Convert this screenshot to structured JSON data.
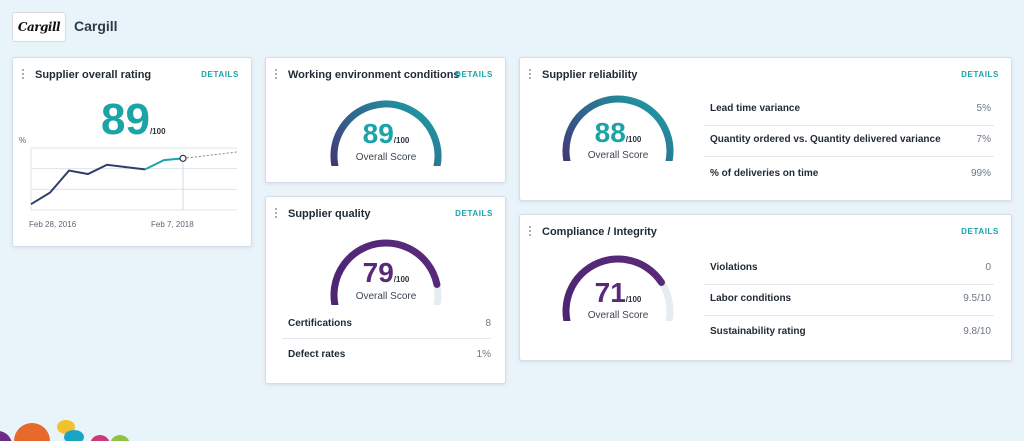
{
  "header": {
    "company": "Cargill",
    "logo_text": "Cargill"
  },
  "colors": {
    "teal": "#1aa4a8",
    "purple": "#5a2a7a",
    "track": "#e6edf2"
  },
  "overall": {
    "title": "Supplier overall rating",
    "details": "DETAILS",
    "score": "89",
    "of": "/100",
    "y_unit": "%",
    "x_start": "Feb 28, 2016",
    "x_end": "Feb 7, 2018"
  },
  "chart_data": {
    "type": "line",
    "x": [
      "Feb 28, 2016",
      "",
      "",
      "",
      "",
      "",
      "",
      "",
      "Feb 7, 2018"
    ],
    "series": [
      {
        "values": [
          10,
          30,
          68,
          62,
          78,
          74,
          70,
          86,
          89
        ]
      }
    ],
    "projection": [
      89,
      100
    ],
    "grid": true
  },
  "working": {
    "title": "Working environment conditions",
    "details": "DETAILS",
    "score": "89",
    "of": "/100",
    "label": "Overall Score",
    "value": 89,
    "color": "teal"
  },
  "quality": {
    "title": "Supplier quality",
    "details": "DETAILS",
    "score": "79",
    "of": "/100",
    "label": "Overall Score",
    "value": 79,
    "color": "purple",
    "rows": [
      {
        "label": "Certifications",
        "value": "8"
      },
      {
        "label": "Defect rates",
        "value": "1%"
      }
    ]
  },
  "reliability": {
    "title": "Supplier reliability",
    "details": "DETAILS",
    "score": "88",
    "of": "/100",
    "label": "Overall Score",
    "value": 88,
    "color": "teal",
    "rows": [
      {
        "label": "Lead time variance",
        "value": "5%"
      },
      {
        "label": "Quantity ordered vs. Quantity delivered variance",
        "value": "7%"
      },
      {
        "label": "% of deliveries on time",
        "value": "99%"
      }
    ]
  },
  "compliance": {
    "title": "Compliance / Integrity",
    "details": "DETAILS",
    "score": "71",
    "of": "/100",
    "label": "Overall Score",
    "value": 71,
    "color": "purple",
    "rows": [
      {
        "label": "Violations",
        "value": "0"
      },
      {
        "label": "Labor conditions",
        "value": "9.5/10"
      },
      {
        "label": "Sustainability rating",
        "value": "9.8/10"
      }
    ]
  }
}
